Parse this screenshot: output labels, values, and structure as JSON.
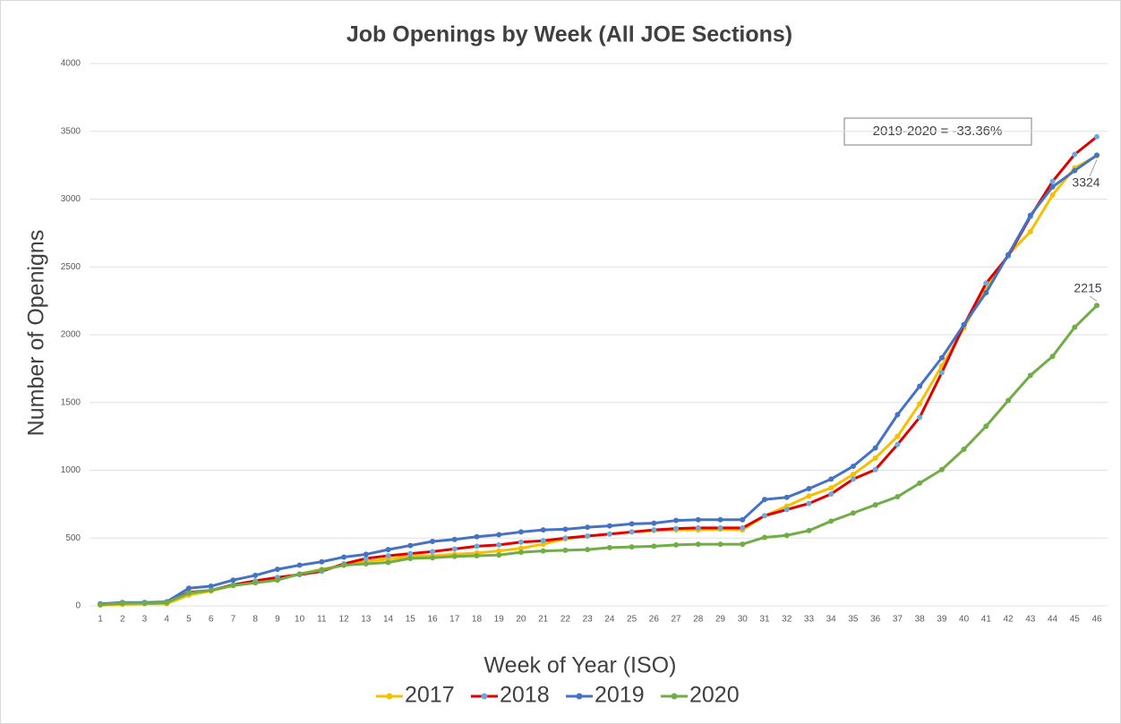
{
  "chart_data": {
    "type": "line",
    "title": "Job Openings by Week (All JOE Sections)",
    "ylabel": "Number of Openigns",
    "xlabel": "Week of Year (ISO)",
    "annotation": "2019-2020 = -33.36%",
    "categories": [
      1,
      2,
      3,
      4,
      5,
      6,
      7,
      8,
      9,
      10,
      11,
      12,
      13,
      14,
      15,
      16,
      17,
      18,
      19,
      20,
      21,
      22,
      23,
      24,
      25,
      26,
      27,
      28,
      29,
      30,
      31,
      32,
      33,
      34,
      35,
      36,
      37,
      38,
      39,
      40,
      41,
      42,
      43,
      44,
      45,
      46
    ],
    "ylim": [
      0,
      4000
    ],
    "yticks": [
      0,
      500,
      1000,
      1500,
      2000,
      2500,
      3000,
      3500,
      4000
    ],
    "grid": true,
    "legend": "bottom",
    "series": [
      {
        "name": "2017",
        "color": "#f5c000",
        "marker_color": "#f5c000",
        "values": [
          5,
          10,
          15,
          15,
          80,
          110,
          150,
          175,
          200,
          235,
          270,
          300,
          330,
          345,
          365,
          370,
          380,
          390,
          405,
          425,
          455,
          495,
          515,
          530,
          545,
          555,
          560,
          560,
          565,
          560,
          665,
          735,
          810,
          870,
          970,
          1090,
          1250,
          1490,
          1770,
          2050,
          2350,
          2590,
          2760,
          3030,
          3230,
          3320
        ]
      },
      {
        "name": "2018",
        "color": "#e00000",
        "marker_color": "#6fa8dc",
        "values": [
          10,
          20,
          20,
          25,
          100,
          115,
          155,
          185,
          210,
          230,
          255,
          310,
          350,
          370,
          385,
          400,
          420,
          440,
          450,
          470,
          480,
          500,
          515,
          530,
          545,
          560,
          570,
          575,
          575,
          575,
          665,
          710,
          755,
          825,
          935,
          1005,
          1190,
          1390,
          1720,
          2070,
          2380,
          2580,
          2870,
          3130,
          3330,
          3460
        ]
      },
      {
        "name": "2019",
        "color": "#4472c4",
        "marker_color": "#4472c4",
        "values": [
          15,
          25,
          25,
          30,
          130,
          145,
          190,
          225,
          270,
          300,
          325,
          360,
          380,
          415,
          445,
          475,
          490,
          510,
          525,
          545,
          560,
          565,
          580,
          590,
          605,
          610,
          630,
          635,
          635,
          635,
          785,
          800,
          865,
          935,
          1030,
          1165,
          1410,
          1620,
          1830,
          2075,
          2310,
          2590,
          2880,
          3090,
          3210,
          3324
        ]
      },
      {
        "name": "2020",
        "color": "#70ad47",
        "marker_color": "#70ad47",
        "values": [
          10,
          20,
          20,
          25,
          95,
          115,
          150,
          170,
          190,
          235,
          265,
          300,
          310,
          320,
          350,
          355,
          365,
          370,
          375,
          395,
          405,
          410,
          415,
          430,
          435,
          440,
          450,
          455,
          455,
          455,
          505,
          520,
          555,
          625,
          685,
          745,
          805,
          905,
          1005,
          1155,
          1325,
          1515,
          1700,
          1840,
          2055,
          2215
        ]
      }
    ]
  }
}
